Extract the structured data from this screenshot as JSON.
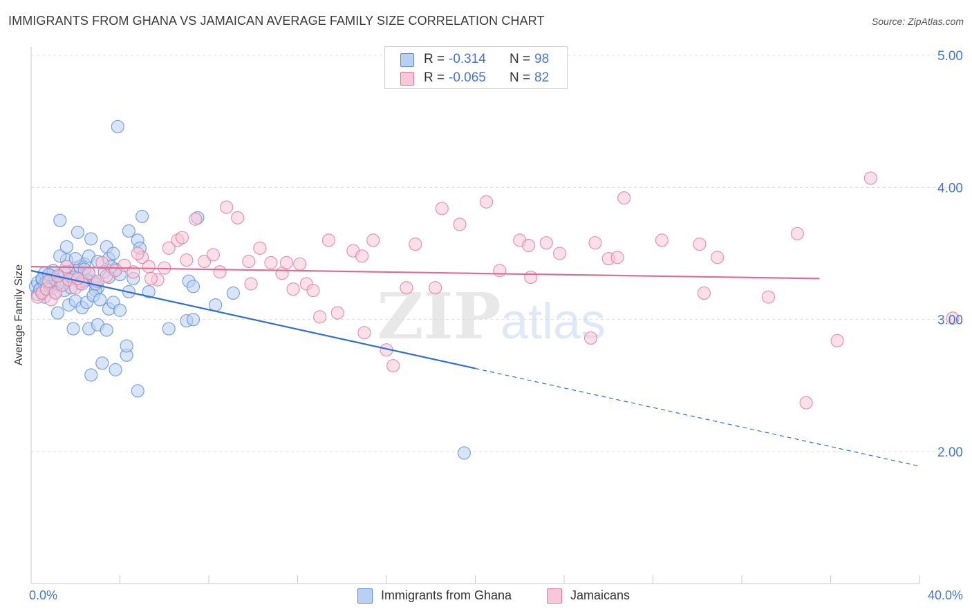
{
  "title": "IMMIGRANTS FROM GHANA VS JAMAICAN AVERAGE FAMILY SIZE CORRELATION CHART",
  "source": "Source: ZipAtlas.com",
  "watermark": {
    "zip": "ZIP",
    "atlas": "atlas"
  },
  "legend": {
    "r_label": "R =",
    "n_label": "N =",
    "rows": [
      {
        "r": "-0.314",
        "n": "98",
        "fill": "#b8d0f4",
        "stroke": "#5b8fd6"
      },
      {
        "r": "-0.065",
        "n": "82",
        "fill": "#f9c7d6",
        "stroke": "#e07ba0"
      }
    ]
  },
  "chart_data": {
    "type": "scatter",
    "title": "IMMIGRANTS FROM GHANA VS JAMAICAN AVERAGE FAMILY SIZE CORRELATION CHART",
    "xlabel": "",
    "ylabel": "Average Family Size",
    "xlim": [
      0,
      40
    ],
    "ylim": [
      1.0,
      5.1
    ],
    "x_tick_labels": [
      "0.0%",
      "40.0%"
    ],
    "y_ticks": [
      2.0,
      3.0,
      4.0,
      5.0
    ],
    "y_tick_labels": [
      "2.00",
      "3.00",
      "4.00",
      "5.00"
    ],
    "grid": true,
    "legend_position": "top-center",
    "series": [
      {
        "name": "Immigrants from Ghana",
        "color": "#5b8fd6",
        "fill": "#b8d0f4",
        "trend": {
          "x0": 0,
          "y0": 3.37,
          "x1": 20,
          "y1": 2.63,
          "dashed_to_x": 40,
          "dashed_to_y": 1.89
        },
        "points": [
          [
            0.2,
            3.25
          ],
          [
            0.3,
            3.28
          ],
          [
            0.4,
            3.22
          ],
          [
            0.5,
            3.3
          ],
          [
            0.6,
            3.27
          ],
          [
            0.7,
            3.31
          ],
          [
            0.8,
            3.24
          ],
          [
            0.9,
            3.33
          ],
          [
            1.0,
            3.26
          ],
          [
            0.3,
            3.19
          ],
          [
            0.5,
            3.21
          ],
          [
            0.6,
            3.35
          ],
          [
            0.8,
            3.29
          ],
          [
            1.0,
            3.37
          ],
          [
            1.2,
            3.32
          ],
          [
            1.4,
            3.28
          ],
          [
            1.5,
            3.22
          ],
          [
            1.6,
            3.45
          ],
          [
            1.8,
            3.31
          ],
          [
            2.0,
            3.39
          ],
          [
            2.2,
            3.27
          ],
          [
            2.4,
            3.42
          ],
          [
            2.6,
            3.35
          ],
          [
            2.8,
            3.29
          ],
          [
            3.0,
            3.24
          ],
          [
            1.3,
            3.48
          ],
          [
            1.6,
            3.55
          ],
          [
            2.1,
            3.66
          ],
          [
            2.6,
            3.48
          ],
          [
            2.7,
            3.61
          ],
          [
            3.0,
            3.44
          ],
          [
            3.4,
            3.55
          ],
          [
            3.5,
            3.46
          ],
          [
            3.7,
            3.5
          ],
          [
            4.4,
            3.67
          ],
          [
            4.8,
            3.6
          ],
          [
            4.9,
            3.54
          ],
          [
            5.0,
            3.78
          ],
          [
            7.5,
            3.77
          ],
          [
            1.3,
            3.75
          ],
          [
            1.7,
            3.36
          ],
          [
            2.2,
            3.4
          ],
          [
            2.5,
            3.3
          ],
          [
            2.9,
            3.22
          ],
          [
            3.3,
            3.36
          ],
          [
            3.5,
            3.32
          ],
          [
            3.8,
            3.38
          ],
          [
            4.0,
            3.34
          ],
          [
            4.4,
            3.21
          ],
          [
            4.6,
            3.31
          ],
          [
            5.3,
            3.21
          ],
          [
            7.1,
            3.29
          ],
          [
            7.3,
            3.25
          ],
          [
            9.1,
            3.2
          ],
          [
            1.2,
            3.05
          ],
          [
            1.7,
            3.11
          ],
          [
            2.0,
            3.14
          ],
          [
            2.3,
            3.09
          ],
          [
            2.5,
            3.13
          ],
          [
            2.8,
            3.18
          ],
          [
            3.1,
            3.15
          ],
          [
            3.5,
            3.08
          ],
          [
            3.7,
            3.13
          ],
          [
            4.0,
            3.07
          ],
          [
            1.9,
            2.93
          ],
          [
            2.6,
            2.93
          ],
          [
            3.0,
            2.96
          ],
          [
            3.4,
            2.92
          ],
          [
            6.2,
            2.93
          ],
          [
            7.0,
            2.99
          ],
          [
            7.3,
            3.0
          ],
          [
            8.3,
            3.11
          ],
          [
            3.2,
            2.67
          ],
          [
            2.7,
            2.58
          ],
          [
            3.8,
            2.62
          ],
          [
            4.3,
            2.73
          ],
          [
            4.3,
            2.8
          ],
          [
            4.8,
            2.46
          ],
          [
            3.9,
            4.46
          ],
          [
            19.5,
            1.99
          ],
          [
            0.4,
            3.23
          ],
          [
            0.7,
            3.28
          ],
          [
            0.9,
            3.23
          ],
          [
            1.1,
            3.3
          ],
          [
            1.4,
            3.26
          ],
          [
            1.9,
            3.32
          ],
          [
            2.3,
            3.29
          ],
          [
            0.6,
            3.17
          ],
          [
            1.1,
            3.21
          ],
          [
            1.5,
            3.36
          ],
          [
            2.0,
            3.46
          ],
          [
            2.4,
            3.38
          ],
          [
            2.9,
            3.27
          ],
          [
            0.5,
            3.31
          ],
          [
            0.8,
            3.34
          ],
          [
            1.2,
            3.27
          ],
          [
            1.8,
            3.24
          ],
          [
            3.6,
            3.4
          ]
        ]
      },
      {
        "name": "Jamaicans",
        "color": "#e07ba0",
        "fill": "#f9c7d6",
        "trend": {
          "x0": 0,
          "y0": 3.4,
          "x1": 35.5,
          "y1": 3.31
        },
        "points": [
          [
            0.3,
            3.17
          ],
          [
            0.5,
            3.2
          ],
          [
            0.7,
            3.23
          ],
          [
            0.9,
            3.15
          ],
          [
            1.1,
            3.2
          ],
          [
            1.4,
            3.26
          ],
          [
            1.7,
            3.3
          ],
          [
            2.0,
            3.24
          ],
          [
            2.3,
            3.27
          ],
          [
            0.8,
            3.29
          ],
          [
            1.2,
            3.33
          ],
          [
            1.6,
            3.4
          ],
          [
            2.1,
            3.31
          ],
          [
            2.6,
            3.35
          ],
          [
            3.0,
            3.29
          ],
          [
            3.4,
            3.33
          ],
          [
            3.8,
            3.37
          ],
          [
            4.2,
            3.41
          ],
          [
            4.6,
            3.36
          ],
          [
            5.0,
            3.47
          ],
          [
            5.3,
            3.4
          ],
          [
            5.7,
            3.3
          ],
          [
            6.2,
            3.54
          ],
          [
            6.6,
            3.6
          ],
          [
            6.8,
            3.62
          ],
          [
            7.0,
            3.45
          ],
          [
            7.4,
            3.76
          ],
          [
            7.8,
            3.44
          ],
          [
            8.2,
            3.49
          ],
          [
            8.5,
            3.36
          ],
          [
            8.8,
            3.85
          ],
          [
            9.3,
            3.77
          ],
          [
            9.8,
            3.44
          ],
          [
            10.3,
            3.54
          ],
          [
            10.8,
            3.43
          ],
          [
            11.3,
            3.35
          ],
          [
            11.8,
            3.23
          ],
          [
            12.1,
            3.42
          ],
          [
            12.4,
            3.27
          ],
          [
            13.4,
            3.6
          ],
          [
            13.8,
            3.05
          ],
          [
            14.5,
            3.52
          ],
          [
            14.9,
            3.48
          ],
          [
            15.4,
            3.6
          ],
          [
            15.0,
            2.9
          ],
          [
            16.0,
            2.77
          ],
          [
            16.3,
            2.65
          ],
          [
            16.9,
            3.24
          ],
          [
            17.3,
            3.57
          ],
          [
            18.5,
            3.84
          ],
          [
            18.2,
            3.24
          ],
          [
            19.3,
            3.72
          ],
          [
            20.5,
            3.89
          ],
          [
            21.1,
            3.37
          ],
          [
            22.0,
            3.6
          ],
          [
            22.4,
            3.56
          ],
          [
            22.5,
            3.32
          ],
          [
            23.2,
            3.58
          ],
          [
            23.8,
            3.5
          ],
          [
            25.2,
            2.86
          ],
          [
            25.4,
            3.58
          ],
          [
            26.0,
            3.46
          ],
          [
            26.4,
            3.47
          ],
          [
            26.7,
            3.92
          ],
          [
            28.4,
            3.6
          ],
          [
            30.1,
            3.57
          ],
          [
            30.3,
            3.2
          ],
          [
            30.9,
            3.47
          ],
          [
            33.2,
            3.17
          ],
          [
            34.5,
            3.65
          ],
          [
            34.9,
            2.37
          ],
          [
            36.3,
            2.84
          ],
          [
            37.8,
            4.07
          ],
          [
            41.5,
            3.01
          ],
          [
            9.9,
            3.27
          ],
          [
            11.5,
            3.43
          ],
          [
            13.0,
            3.02
          ],
          [
            12.7,
            3.22
          ],
          [
            6.0,
            3.39
          ],
          [
            4.8,
            3.5
          ],
          [
            3.2,
            3.43
          ],
          [
            5.4,
            3.31
          ]
        ]
      }
    ]
  },
  "bottom_legend": [
    {
      "label": "Immigrants from Ghana",
      "fill": "#b8d0f4",
      "stroke": "#5b8fd6"
    },
    {
      "label": "Jamaicans",
      "fill": "#f9c7d6",
      "stroke": "#e07ba0"
    }
  ]
}
